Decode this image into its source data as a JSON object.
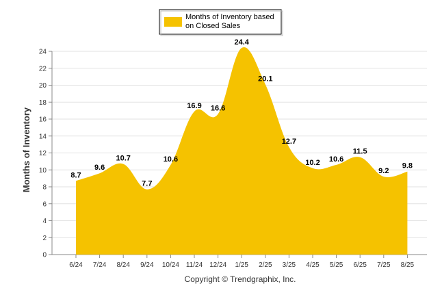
{
  "chart_data": {
    "type": "area",
    "categories": [
      "6/24",
      "7/24",
      "8/24",
      "9/24",
      "10/24",
      "11/24",
      "12/24",
      "1/25",
      "2/25",
      "3/25",
      "4/25",
      "5/25",
      "6/25",
      "7/25",
      "8/25"
    ],
    "series": [
      {
        "name": "Months of Inventory based on Closed Sales",
        "values": [
          8.7,
          9.6,
          10.7,
          7.7,
          10.6,
          16.9,
          16.6,
          24.4,
          20.1,
          12.7,
          10.2,
          10.6,
          11.5,
          9.2,
          9.8
        ],
        "color": "#F5C200"
      }
    ],
    "legend_lines": [
      "Months of Inventory based",
      "on Closed Sales"
    ],
    "ylabel": "Months of Inventory",
    "xlabel": "",
    "ylim": [
      0,
      24
    ],
    "yticks": [
      0,
      2,
      4,
      6,
      8,
      10,
      12,
      14,
      16,
      18,
      20,
      22,
      24
    ],
    "grid": true,
    "legend_position": "top-center",
    "footer": "Copyright © Trendgraphix, Inc."
  }
}
